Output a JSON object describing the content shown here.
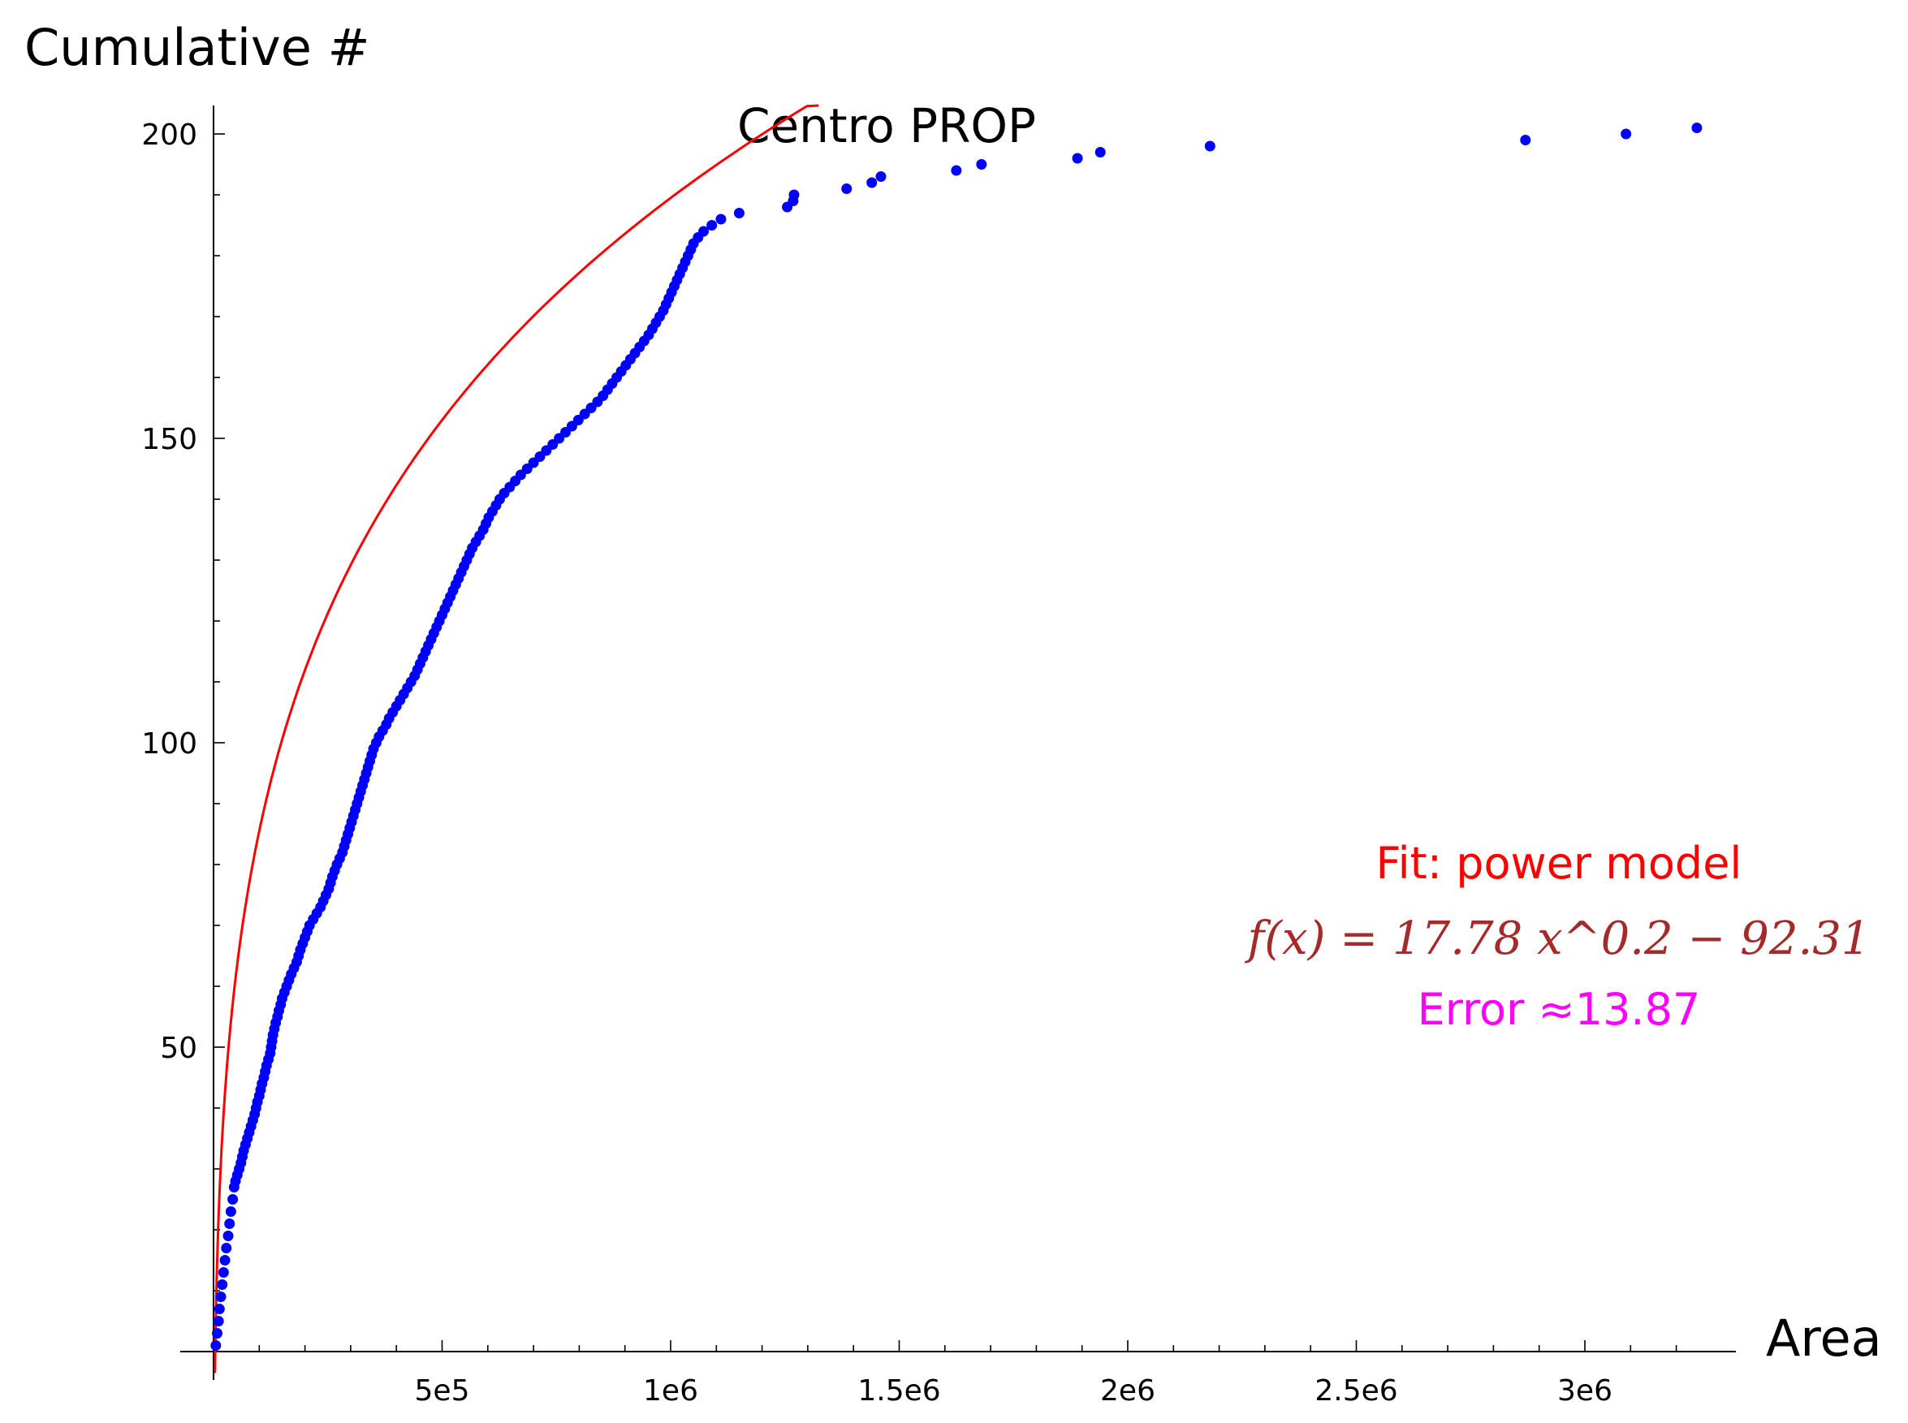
{
  "colors": {
    "points": "#0000ff",
    "fit": "#ff0000",
    "fit_label": "#ff0000",
    "formula": "#a52a2a",
    "error": "#ff00ff",
    "axes": "#000000"
  },
  "chart_data": {
    "type": "scatter",
    "title": "Centro PROP",
    "xlabel": "Area",
    "ylabel": "Cumulative #",
    "xlim": [
      -10000,
      3300000
    ],
    "ylim": [
      0,
      205
    ],
    "x_ticks": [
      500000,
      1000000,
      1500000,
      2000000,
      2500000,
      3000000
    ],
    "x_tick_labels": [
      "5e5",
      "1e6",
      "1.5e6",
      "2e6",
      "2.5e6",
      "3e6"
    ],
    "y_ticks": [
      50,
      100,
      150,
      200
    ],
    "y_tick_labels": [
      "50",
      "100",
      "150",
      "200"
    ],
    "grid": false,
    "series": [
      {
        "kind": "points",
        "x": [
          5000,
          8000,
          11000,
          13000,
          16000,
          19000,
          22000,
          25000,
          28000,
          32000,
          35000,
          38000,
          42000,
          45000,
          48000,
          52000,
          56000,
          60000,
          63000,
          66000,
          70000,
          74000,
          78000,
          82000,
          86000,
          90000,
          93000,
          96000,
          100000,
          103000,
          106000,
          110000,
          113000,
          116000,
          120000,
          124000,
          126000,
          128000,
          130000,
          133000,
          136000,
          140000,
          143000,
          147000,
          150000,
          155000,
          160000,
          165000,
          170000,
          176000,
          182000,
          186000,
          190000,
          195000,
          200000,
          205000,
          210000,
          218000,
          226000,
          234000,
          240000,
          246000,
          252000,
          256000,
          260000,
          265000,
          270000,
          276000,
          282000,
          286000,
          290000,
          294000,
          298000,
          302000,
          306000,
          310000,
          314000,
          318000,
          322000,
          326000,
          330000,
          334000,
          338000,
          342000,
          346000,
          350000,
          356000,
          362000,
          370000,
          378000,
          384000,
          392000,
          400000,
          408000,
          416000,
          424000,
          432000,
          440000,
          446000,
          452000,
          458000,
          464000,
          470000,
          476000,
          482000,
          488000,
          494000,
          500000,
          506000,
          512000,
          518000,
          524000,
          530000,
          536000,
          542000,
          548000,
          554000,
          560000,
          566000,
          574000,
          582000,
          590000,
          596000,
          602000,
          610000,
          618000,
          626000,
          636000,
          648000,
          660000,
          672000,
          686000,
          700000,
          714000,
          728000,
          742000,
          756000,
          770000,
          784000,
          798000,
          812000,
          826000,
          840000,
          852000,
          862000,
          872000,
          882000,
          892000,
          902000,
          912000,
          922000,
          932000,
          942000,
          952000,
          960000,
          968000,
          976000,
          984000,
          990000,
          996000,
          1002000,
          1008000,
          1014000,
          1020000,
          1026000,
          1032000,
          1038000,
          1044000,
          1050000,
          1060000,
          1072000,
          1090000,
          1110000,
          1150000,
          1255000,
          1268000,
          1270000,
          1385000,
          1440000,
          1460000,
          1625000,
          1680000,
          1890000,
          1940000,
          2180000,
          2870000,
          3090000,
          3245000
        ],
        "y": [
          1,
          3,
          5,
          7,
          9,
          11,
          13,
          15,
          17,
          19,
          21,
          23,
          25,
          27,
          28,
          29,
          30,
          31,
          32,
          33,
          34,
          35,
          36,
          37,
          38,
          39,
          40,
          41,
          42,
          43,
          44,
          45,
          46,
          47,
          48,
          49,
          50,
          51,
          52,
          53,
          54,
          55,
          56,
          57,
          58,
          59,
          60,
          61,
          62,
          63,
          64,
          65,
          66,
          67,
          68,
          69,
          70,
          71,
          72,
          73,
          74,
          75,
          76,
          77,
          78,
          79,
          80,
          81,
          82,
          83,
          84,
          85,
          86,
          87,
          88,
          89,
          90,
          91,
          92,
          93,
          94,
          95,
          96,
          97,
          98,
          99,
          100,
          101,
          102,
          103,
          104,
          105,
          106,
          107,
          108,
          109,
          110,
          111,
          112,
          113,
          114,
          115,
          116,
          117,
          118,
          119,
          120,
          121,
          122,
          123,
          124,
          125,
          126,
          127,
          128,
          129,
          130,
          131,
          132,
          133,
          134,
          135,
          136,
          137,
          138,
          139,
          140,
          141,
          142,
          143,
          144,
          145,
          146,
          147,
          148,
          149,
          150,
          151,
          152,
          153,
          154,
          155,
          156,
          157,
          158,
          159,
          160,
          161,
          162,
          163,
          164,
          165,
          166,
          167,
          168,
          169,
          170,
          171,
          172,
          173,
          174,
          175,
          176,
          177,
          178,
          179,
          180,
          181,
          182,
          183,
          184,
          185,
          186,
          187,
          188,
          189,
          190,
          191,
          192,
          193,
          194,
          195,
          196,
          197,
          198,
          199,
          200,
          201
        ]
      },
      {
        "kind": "fit_curve",
        "coef": 17.78,
        "exponent": 0.2,
        "offset": -92.31
      }
    ],
    "annotations": {
      "fit_label": "Fit: power model",
      "formula": "f(x) = 17.78 x^0.2 − 92.31",
      "error": "Error ≈13.87"
    }
  }
}
